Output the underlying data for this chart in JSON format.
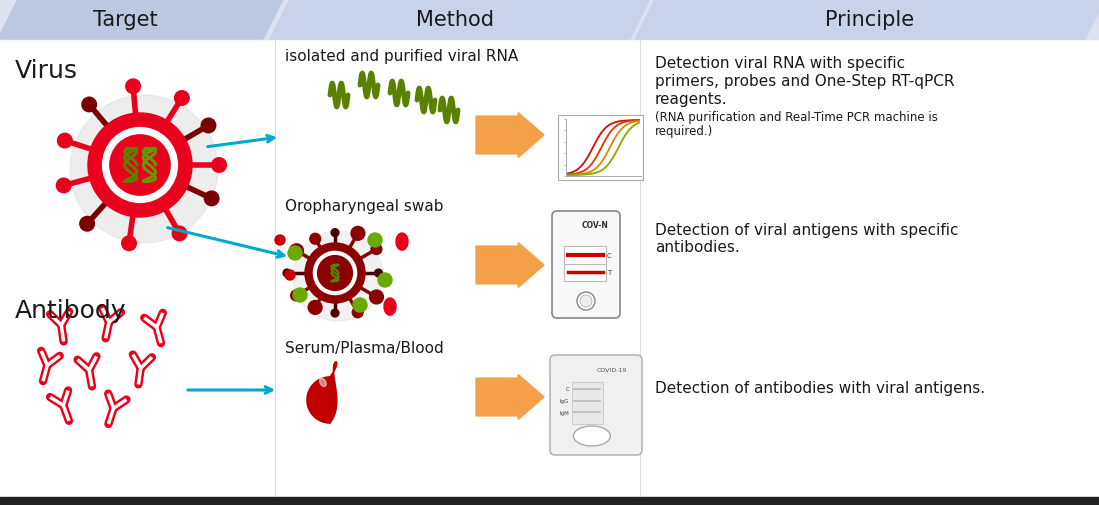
{
  "bg_color": "#ffffff",
  "header_bg1": "#b8c4df",
  "header_bg2": "#c5d0e8",
  "header_text_color": "#1a1a1a",
  "headers": [
    "Target",
    "Method",
    "Principle"
  ],
  "divider_color": "#cccccc",
  "row1_labels": {
    "virus": "Virus",
    "method1": "isolated and purified viral RNA",
    "principle1_line1": "Detection viral RNA with specific",
    "principle1_line2": "primers, probes and One-Step RT-qPCR",
    "principle1_line3": "reagents.",
    "principle1_line4": "(RNA purification and Real-Time PCR machine is",
    "principle1_line5": "required.)"
  },
  "row2_labels": {
    "method2": "Oropharyngeal swab",
    "principle2_line1": "Detection of viral antigens with specific",
    "principle2_line2": "antibodies."
  },
  "row3_labels": {
    "antibody": "Antibody",
    "method3": "Serum/Plasma/Blood",
    "principle3": "Detection of antibodies with viral antigens."
  },
  "virus_color": "#e8001c",
  "virus_dark": "#7a0000",
  "rna_color": "#5a8000",
  "antibody_color": "#e8001c",
  "blood_color": "#cc0000",
  "arrow_color": "#f4953a",
  "thin_arrow_color": "#00aacc",
  "text_color": "#1a1a1a",
  "font_size_header": 15,
  "font_size_virus_label": 18,
  "font_size_antibody_label": 18,
  "font_size_method": 11,
  "font_size_principle": 11,
  "font_size_principle_small": 8.5
}
